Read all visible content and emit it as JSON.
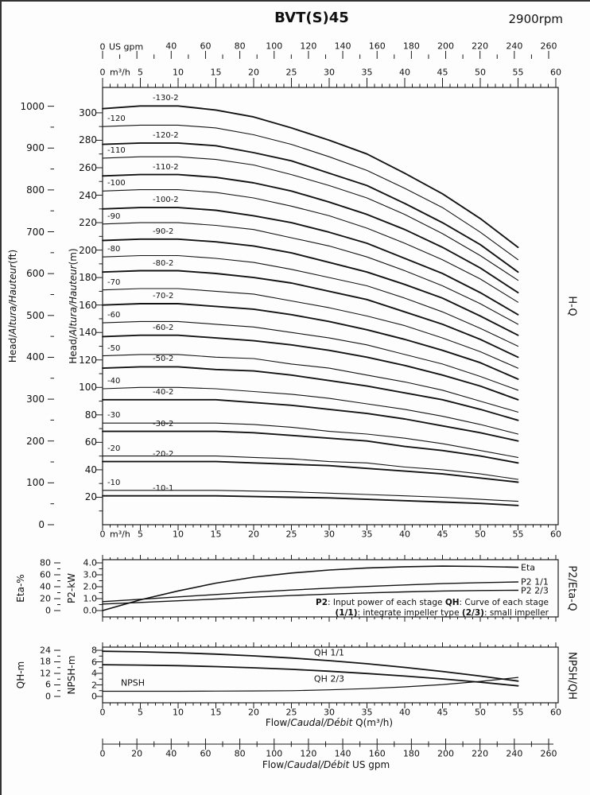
{
  "header": {
    "title": "BVT(S)45",
    "rpm": "2900rpm"
  },
  "panels": {
    "hq": "H-Q",
    "p2eta": "P2/Eta-Q",
    "npshqh": "NPSH/QH"
  },
  "note": {
    "b1": "P2",
    "t1": ": Input power of each stage ",
    "b2": "QH",
    "t2": ": Curve of each stage",
    "b3": "(1/1)",
    "t3": ": integrate impeller type ",
    "b4": "(2/3)",
    "t4": ": small impeller"
  },
  "axes": {
    "top_gpm": {
      "zero": "0",
      "unit": "US gpm",
      "ticks": [
        40,
        60,
        80,
        100,
        120,
        140,
        160,
        180,
        200,
        220,
        240,
        260
      ]
    },
    "top_m3h": {
      "zero": "0",
      "unit": "m³/h",
      "ticks": [
        5,
        10,
        15,
        20,
        25,
        30,
        35,
        40,
        45,
        50,
        55,
        60
      ]
    },
    "main_bottom": {
      "zero": "0",
      "unit": "m³/h",
      "ticks": [
        5,
        10,
        15,
        20,
        25,
        30,
        35,
        40,
        45,
        50,
        55,
        60
      ]
    },
    "head_ft": {
      "t1": "Head/",
      "t2": "Altura/Hauteur",
      "t3": "(ft)",
      "ticks": [
        0,
        100,
        200,
        300,
        400,
        500,
        600,
        700,
        800,
        900,
        1000
      ]
    },
    "head_m": {
      "t1": "Head/",
      "t2": "Altura/Hauteur",
      "t3": "(m)",
      "ticks": [
        20,
        40,
        60,
        80,
        100,
        120,
        140,
        160,
        180,
        200,
        220,
        240,
        260,
        280,
        300
      ]
    },
    "eta": {
      "label": "Eta-%",
      "ticks": [
        0,
        20,
        40,
        60,
        80
      ]
    },
    "p2": {
      "label": "P2-kW",
      "ticks": [
        "0.0",
        "1.0",
        "2.0",
        "3.0",
        "4.0"
      ]
    },
    "qh": {
      "label": "QH-m",
      "ticks": [
        0,
        6,
        12,
        18,
        24
      ]
    },
    "npsh": {
      "label": "NPSH-m",
      "ticks": [
        0,
        2,
        4,
        6,
        8
      ]
    },
    "bottom_m3h": {
      "t1": "Flow/",
      "t2": "Caudal/Débit",
      "t3": " Q(m³/h)",
      "ticks": [
        0,
        5,
        10,
        15,
        20,
        25,
        30,
        35,
        40,
        45,
        50,
        55,
        60
      ]
    },
    "bottom_gpm": {
      "t1": "Flow/",
      "t2": "Caudal/Débit",
      "t3": "  US gpm",
      "ticks": [
        0,
        20,
        40,
        60,
        80,
        100,
        120,
        140,
        160,
        180,
        200,
        220,
        240,
        260
      ]
    }
  },
  "chart_data": [
    {
      "type": "line",
      "title": "H-Q performance curves BVT(S)45 2900rpm",
      "xlabel": "Flow Q (m³/h)",
      "ylabel": "Head (m)",
      "xlim": [
        0,
        60
      ],
      "ylim_m": [
        0,
        310
      ],
      "ylim_ft": [
        0,
        1000
      ],
      "grid": false,
      "x_m3h": [
        0,
        5,
        10,
        15,
        20,
        25,
        30,
        35,
        40,
        45,
        50,
        55
      ],
      "series": [
        {
          "name": "-130-2",
          "values": [
            303,
            305,
            305,
            302,
            297,
            289,
            280,
            270,
            256,
            241,
            223,
            202
          ]
        },
        {
          "name": "-120",
          "values": [
            290,
            291,
            291,
            289,
            284,
            277,
            268,
            258,
            245,
            231,
            213,
            193
          ]
        },
        {
          "name": "-120-2",
          "values": [
            277,
            278,
            278,
            276,
            271,
            265,
            256,
            247,
            234,
            220,
            204,
            184
          ]
        },
        {
          "name": "-110",
          "values": [
            267,
            268,
            268,
            266,
            262,
            255,
            247,
            238,
            226,
            212,
            196,
            178
          ]
        },
        {
          "name": "-110-2",
          "values": [
            254,
            255,
            255,
            253,
            249,
            243,
            235,
            226,
            215,
            202,
            187,
            169
          ]
        },
        {
          "name": "-100",
          "values": [
            243,
            244,
            244,
            242,
            238,
            232,
            225,
            216,
            205,
            193,
            179,
            162
          ]
        },
        {
          "name": "-100-2",
          "values": [
            230,
            231,
            231,
            229,
            225,
            220,
            213,
            205,
            194,
            183,
            169,
            153
          ]
        },
        {
          "name": "-90",
          "values": [
            219,
            220,
            220,
            218,
            215,
            209,
            203,
            195,
            185,
            174,
            161,
            146
          ]
        },
        {
          "name": "-90-2",
          "values": [
            207,
            208,
            208,
            206,
            203,
            198,
            191,
            184,
            175,
            165,
            152,
            138
          ]
        },
        {
          "name": "-80",
          "values": [
            195,
            196,
            196,
            194,
            191,
            186,
            180,
            174,
            165,
            155,
            143,
            130
          ]
        },
        {
          "name": "-80-2",
          "values": [
            184,
            185,
            185,
            183,
            180,
            176,
            170,
            164,
            155,
            146,
            135,
            122
          ]
        },
        {
          "name": "-70",
          "values": [
            171,
            172,
            172,
            170,
            168,
            163,
            158,
            152,
            145,
            136,
            126,
            114
          ]
        },
        {
          "name": "-70-2",
          "values": [
            160,
            161,
            161,
            159,
            157,
            153,
            148,
            142,
            135,
            127,
            118,
            106
          ]
        },
        {
          "name": "-60",
          "values": [
            147,
            148,
            148,
            146,
            144,
            140,
            136,
            131,
            124,
            117,
            108,
            98
          ]
        },
        {
          "name": "-60-2",
          "values": [
            137,
            138,
            138,
            136,
            134,
            131,
            127,
            122,
            116,
            109,
            101,
            91
          ]
        },
        {
          "name": "-50",
          "values": [
            123,
            124,
            124,
            122,
            121,
            117,
            114,
            109,
            104,
            98,
            90,
            82
          ]
        },
        {
          "name": "-50-2",
          "values": [
            114,
            115,
            115,
            113,
            112,
            109,
            105,
            101,
            96,
            91,
            84,
            76
          ]
        },
        {
          "name": "-40",
          "values": [
            99,
            100,
            100,
            99,
            97,
            95,
            92,
            88,
            84,
            79,
            73,
            66
          ]
        },
        {
          "name": "-40-2",
          "values": [
            91,
            91,
            91,
            91,
            89,
            87,
            84,
            81,
            77,
            72,
            67,
            61
          ]
        },
        {
          "name": "-30",
          "values": [
            74,
            74,
            74,
            74,
            73,
            71,
            68,
            66,
            63,
            59,
            54,
            49
          ]
        },
        {
          "name": "-30-2",
          "values": [
            68,
            68,
            68,
            68,
            67,
            65,
            63,
            61,
            57,
            54,
            50,
            45
          ]
        },
        {
          "name": "-20",
          "values": [
            50,
            50,
            50,
            50,
            49,
            48,
            46,
            45,
            42,
            40,
            37,
            33
          ]
        },
        {
          "name": "-20-2",
          "values": [
            46,
            46,
            46,
            46,
            45,
            44,
            43,
            41,
            39,
            37,
            34,
            31
          ]
        },
        {
          "name": "-10",
          "values": [
            25,
            25,
            25,
            25,
            24.5,
            24,
            23,
            22,
            21,
            20,
            18.5,
            17
          ]
        },
        {
          "name": "-10-1",
          "values": [
            21,
            21,
            21,
            21,
            20.5,
            20,
            19.5,
            18.5,
            17.5,
            16.5,
            15.5,
            14
          ]
        }
      ]
    },
    {
      "type": "line",
      "title": "P2/Eta-Q",
      "xlabel": "Flow Q (m³/h)",
      "ylabel_left": "Eta-% (0-80)",
      "ylabel_left2": "P2-kW (0.0-4.0)",
      "grid": false,
      "x_m3h": [
        0,
        5,
        10,
        15,
        20,
        25,
        30,
        35,
        40,
        45,
        50,
        55
      ],
      "series": [
        {
          "name": "Eta",
          "axis": "eta",
          "values": [
            0,
            18,
            33,
            46,
            56,
            63,
            68,
            71.5,
            73.5,
            74.5,
            74,
            72.5
          ]
        },
        {
          "name": "P2 1/1",
          "axis": "p2",
          "values": [
            0.75,
            0.95,
            1.15,
            1.35,
            1.55,
            1.72,
            1.88,
            2.02,
            2.15,
            2.26,
            2.34,
            2.4
          ]
        },
        {
          "name": "P2 2/3",
          "axis": "p2",
          "values": [
            0.55,
            0.68,
            0.82,
            0.97,
            1.12,
            1.26,
            1.38,
            1.48,
            1.57,
            1.64,
            1.68,
            1.7
          ]
        }
      ]
    },
    {
      "type": "line",
      "title": "NPSH/QH",
      "xlabel": "Flow/Caudal/Débit Q(m³/h)",
      "ylabel_left": "QH-m (0-24)",
      "ylabel_left2": "NPSH-m (0-8)",
      "grid": false,
      "x_m3h": [
        0,
        5,
        10,
        15,
        20,
        25,
        30,
        35,
        40,
        45,
        50,
        55
      ],
      "series": [
        {
          "name": "QH 1/1",
          "axis": "qh",
          "values": [
            23.5,
            23.2,
            22.7,
            22,
            21.1,
            20,
            18.6,
            17,
            15.1,
            13,
            10.6,
            8
          ]
        },
        {
          "name": "QH 2/3",
          "axis": "qh",
          "values": [
            16.5,
            16.3,
            16,
            15.5,
            14.9,
            14.1,
            13.1,
            11.9,
            10.6,
            9.1,
            7.4,
            5.5
          ]
        },
        {
          "name": "NPSH",
          "axis": "npsh",
          "values": [
            0.9,
            0.9,
            0.9,
            0.92,
            0.95,
            1,
            1.15,
            1.35,
            1.65,
            2.05,
            2.6,
            3.3
          ]
        }
      ]
    }
  ]
}
